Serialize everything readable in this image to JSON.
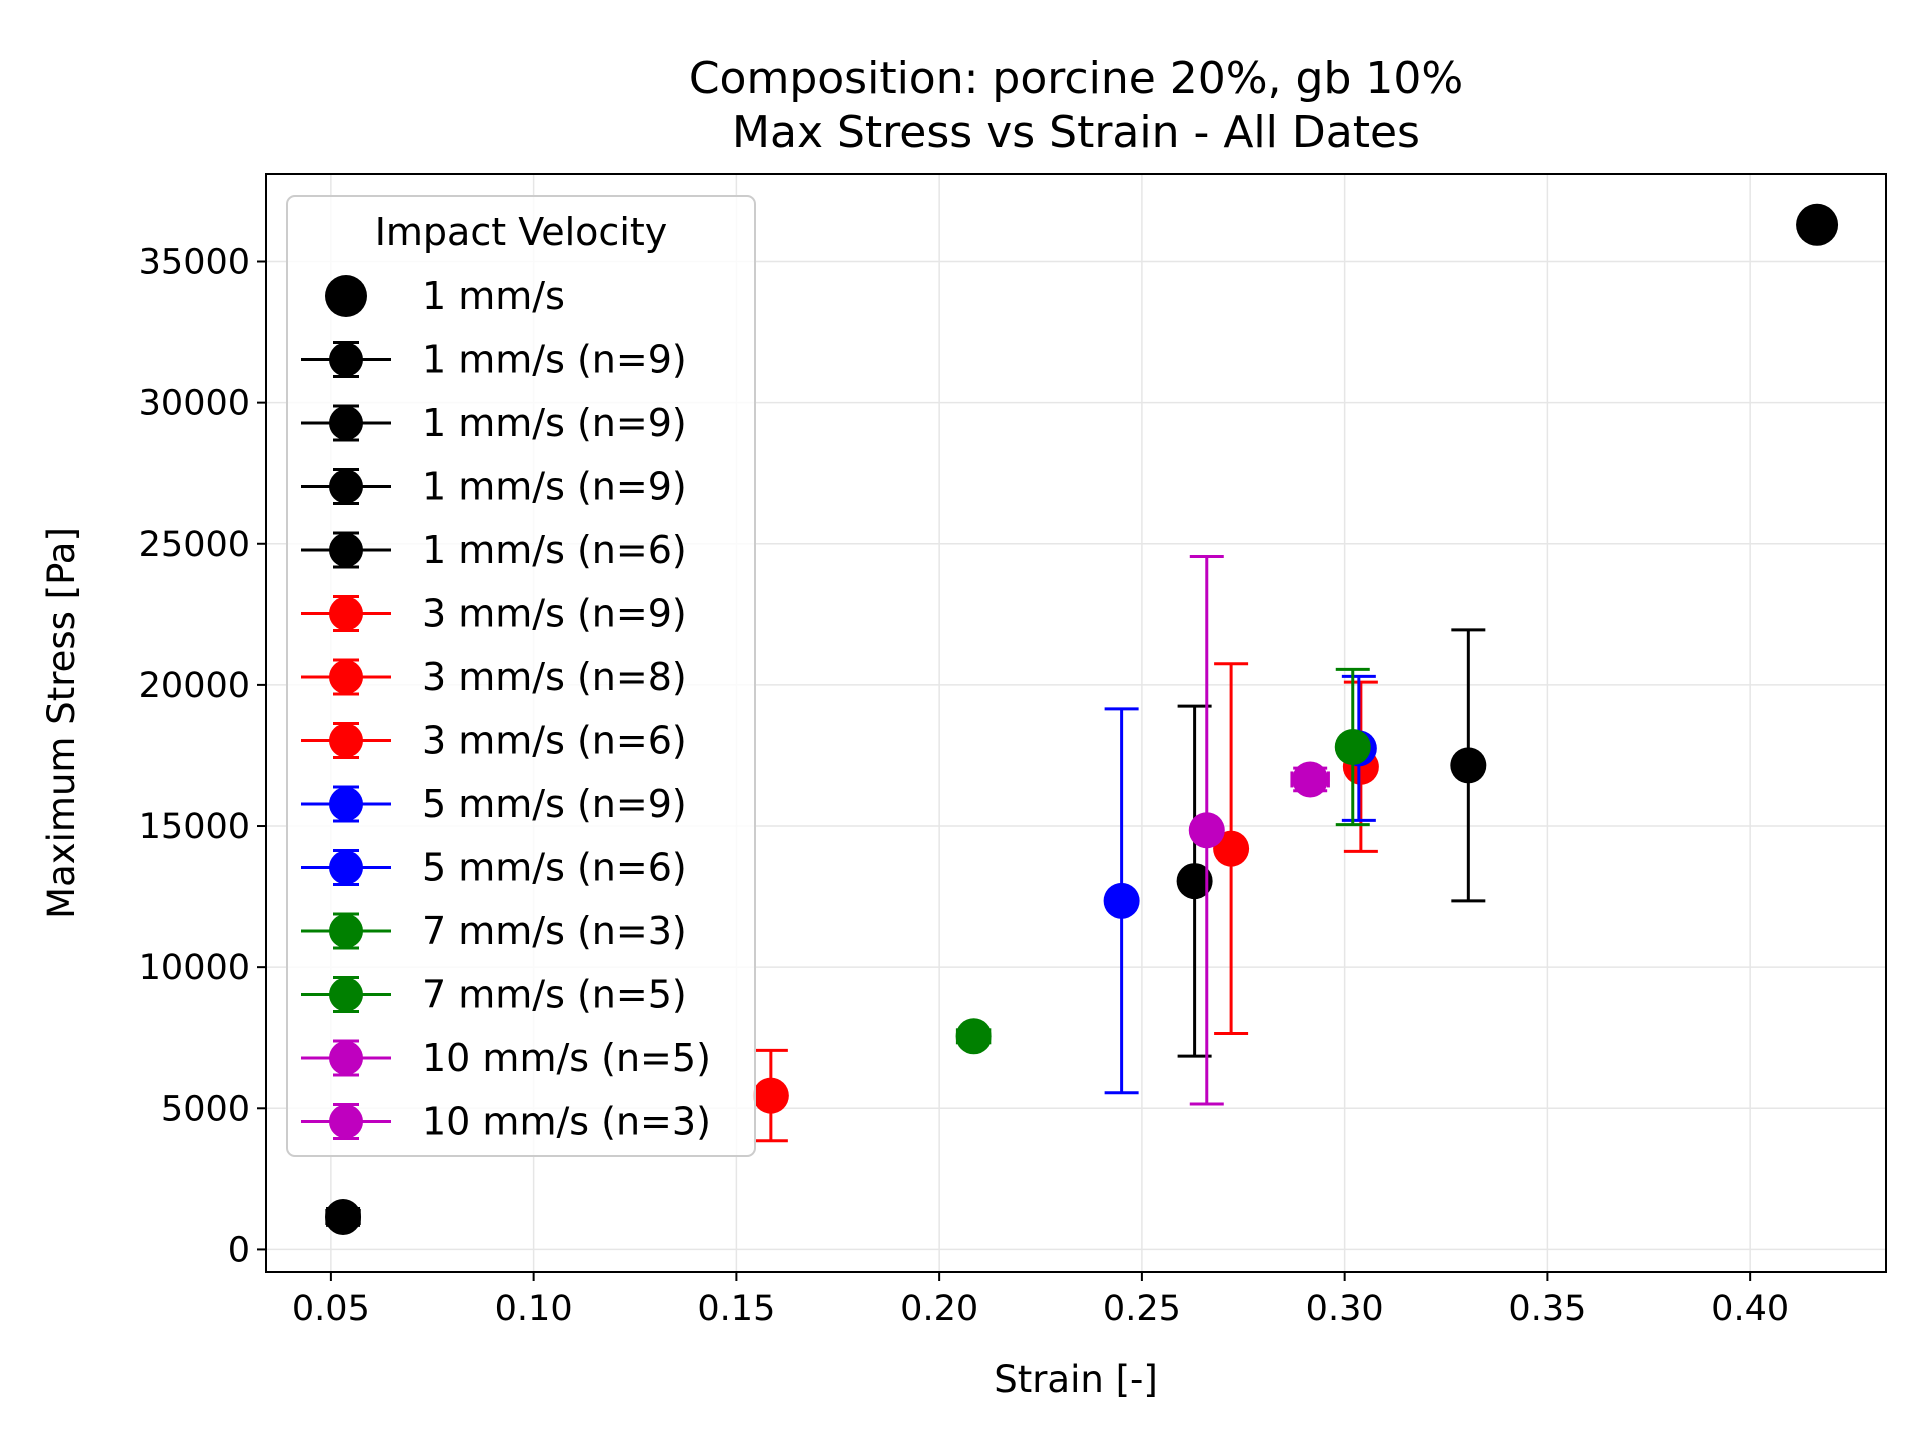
{
  "chart_data": {
    "type": "scatter",
    "title_lines": [
      "Composition: porcine 20%, gb 10%",
      "Max Stress vs Strain - All Dates"
    ],
    "xlabel": "Strain [-]",
    "ylabel": "Maximum Stress [Pa]",
    "xlim": [
      0.034,
      0.4335
    ],
    "ylim": [
      -800,
      38100
    ],
    "x_ticks": [
      0.05,
      0.1,
      0.15,
      0.2,
      0.25,
      0.3,
      0.35,
      0.4
    ],
    "x_tick_labels": [
      "0.05",
      "0.10",
      "0.15",
      "0.20",
      "0.25",
      "0.30",
      "0.35",
      "0.40"
    ],
    "y_ticks": [
      0,
      5000,
      10000,
      15000,
      20000,
      25000,
      30000,
      35000
    ],
    "y_tick_labels": [
      "0",
      "5000",
      "10000",
      "15000",
      "20000",
      "25000",
      "30000",
      "35000"
    ],
    "grid": true,
    "legend": {
      "title": "Impact Velocity",
      "placement": "upper-left"
    },
    "series": [
      {
        "name": "1 mm/s",
        "color": "#000000",
        "marker": "scatter",
        "points": [
          {
            "x": 0.4165,
            "y": 36300
          }
        ]
      },
      {
        "name": "1 mm/s (n=9)",
        "color": "#000000",
        "marker": "errorbar",
        "points": [
          {
            "x": 0.053,
            "y": 1150,
            "yerr": 300,
            "xerr": 0.004
          }
        ]
      },
      {
        "name": "1 mm/s (n=9)",
        "color": "#000000",
        "marker": "errorbar",
        "points": [
          {
            "x": 0.263,
            "y": 13050,
            "yerr": 6200
          }
        ]
      },
      {
        "name": "1 mm/s (n=9)",
        "color": "#000000",
        "marker": "errorbar",
        "points": [
          {
            "x": 0.3305,
            "y": 17150,
            "yerr": 4800
          }
        ]
      },
      {
        "name": "1 mm/s (n=6)",
        "color": "#000000",
        "marker": "errorbar",
        "points": []
      },
      {
        "name": "3 mm/s (n=9)",
        "color": "#ff0000",
        "marker": "errorbar",
        "points": [
          {
            "x": 0.1585,
            "y": 5450,
            "yerr": 1600
          }
        ]
      },
      {
        "name": "3 mm/s (n=8)",
        "color": "#ff0000",
        "marker": "errorbar",
        "points": [
          {
            "x": 0.272,
            "y": 14200,
            "yerr": 6550
          }
        ]
      },
      {
        "name": "3 mm/s (n=6)",
        "color": "#ff0000",
        "marker": "errorbar",
        "points": [
          {
            "x": 0.304,
            "y": 17100,
            "yerr": 3000
          }
        ]
      },
      {
        "name": "5 mm/s (n=9)",
        "color": "#0000ff",
        "marker": "errorbar",
        "points": [
          {
            "x": 0.245,
            "y": 12350,
            "yerr": 6800
          }
        ]
      },
      {
        "name": "5 mm/s (n=6)",
        "color": "#0000ff",
        "marker": "errorbar",
        "points": [
          {
            "x": 0.3035,
            "y": 17750,
            "yerr": 2550
          }
        ]
      },
      {
        "name": "7 mm/s (n=3)",
        "color": "#008000",
        "marker": "errorbar",
        "points": [
          {
            "x": 0.2085,
            "y": 7550,
            "yerr": 150,
            "xerr": 0.004
          }
        ]
      },
      {
        "name": "7 mm/s (n=5)",
        "color": "#008000",
        "marker": "errorbar",
        "points": [
          {
            "x": 0.302,
            "y": 17800,
            "yerr": 2750
          }
        ]
      },
      {
        "name": "10 mm/s (n=5)",
        "color": "#bf00bf",
        "marker": "errorbar",
        "points": [
          {
            "x": 0.266,
            "y": 14850,
            "yerr": 9700
          }
        ]
      },
      {
        "name": "10 mm/s (n=3)",
        "color": "#bf00bf",
        "marker": "errorbar",
        "points": [
          {
            "x": 0.2915,
            "y": 16650,
            "yerr": 400,
            "xerr": 0.0045
          }
        ]
      }
    ]
  }
}
